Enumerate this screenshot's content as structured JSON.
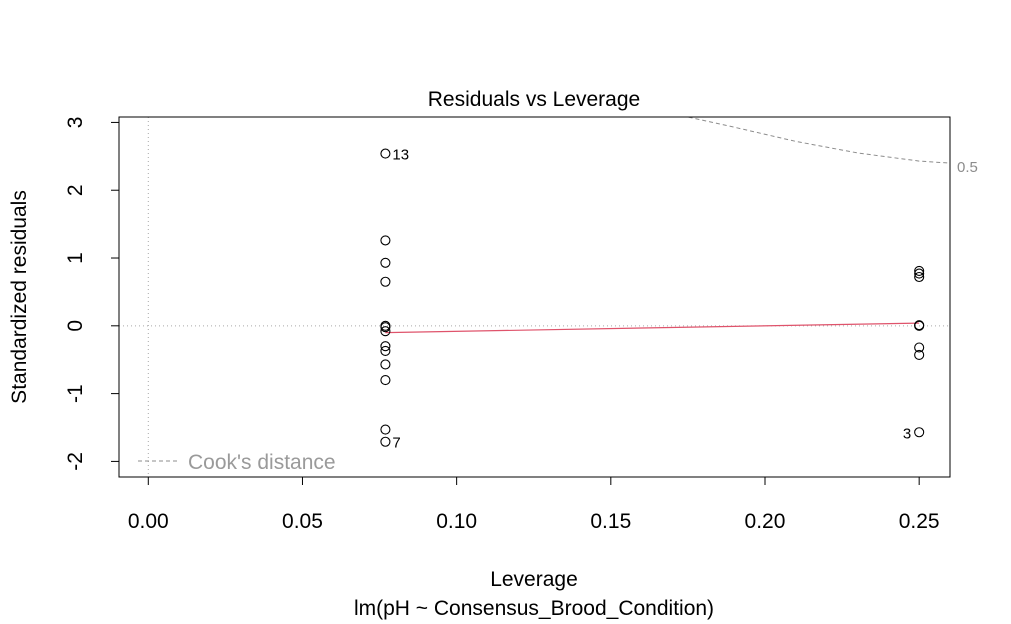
{
  "chart_data": {
    "type": "scatter",
    "title": "Residuals vs Leverage",
    "xlabel": "Leverage",
    "ylabel": "Standardized residuals",
    "subtitle": "lm(pH ~ Consensus_Brood_Condition)",
    "xlim": [
      -0.0095,
      0.26
    ],
    "ylim": [
      -2.23,
      3.08
    ],
    "x_ticks": [
      0.0,
      0.05,
      0.1,
      0.15,
      0.2,
      0.25
    ],
    "x_tick_labels": [
      "0.00",
      "0.05",
      "0.10",
      "0.15",
      "0.20",
      "0.25"
    ],
    "y_ticks": [
      -2,
      -1,
      0,
      1,
      2,
      3
    ],
    "y_tick_labels": [
      "-2",
      "-1",
      "0",
      "1",
      "2",
      "3"
    ],
    "grid": false,
    "points": [
      {
        "x": 0.0769,
        "y": 2.54,
        "label": "13"
      },
      {
        "x": 0.0769,
        "y": 1.26
      },
      {
        "x": 0.0769,
        "y": 0.93
      },
      {
        "x": 0.0769,
        "y": 0.65
      },
      {
        "x": 0.0769,
        "y": 0.0
      },
      {
        "x": 0.0769,
        "y": -0.02
      },
      {
        "x": 0.0769,
        "y": -0.08
      },
      {
        "x": 0.0769,
        "y": -0.3
      },
      {
        "x": 0.0769,
        "y": -0.37
      },
      {
        "x": 0.0769,
        "y": -0.57
      },
      {
        "x": 0.0769,
        "y": -0.8
      },
      {
        "x": 0.0769,
        "y": -1.53
      },
      {
        "x": 0.0769,
        "y": -1.71,
        "label": "7"
      },
      {
        "x": 0.25,
        "y": 0.81
      },
      {
        "x": 0.25,
        "y": 0.77
      },
      {
        "x": 0.25,
        "y": 0.72
      },
      {
        "x": 0.25,
        "y": 0.01
      },
      {
        "x": 0.25,
        "y": 0.0
      },
      {
        "x": 0.25,
        "y": -0.32
      },
      {
        "x": 0.25,
        "y": -0.43
      },
      {
        "x": 0.25,
        "y": -1.57,
        "label": "3"
      }
    ],
    "smooth_line": {
      "x": [
        0.0769,
        0.25
      ],
      "y": [
        -0.1,
        0.04
      ],
      "color": "#df536b"
    },
    "cooks_contour": {
      "label": "0.5",
      "x": [
        0.173,
        0.19,
        0.21,
        0.23,
        0.25,
        0.26
      ],
      "y": [
        3.1,
        2.93,
        2.72,
        2.55,
        2.43,
        2.4
      ]
    },
    "legend": {
      "entries": [
        "Cook's distance"
      ],
      "position": "bottom-left"
    },
    "colors": {
      "smooth": "#df536b",
      "reference": "#a9a9a9",
      "cooks": "#8c8c8c",
      "points": "#000000"
    }
  }
}
